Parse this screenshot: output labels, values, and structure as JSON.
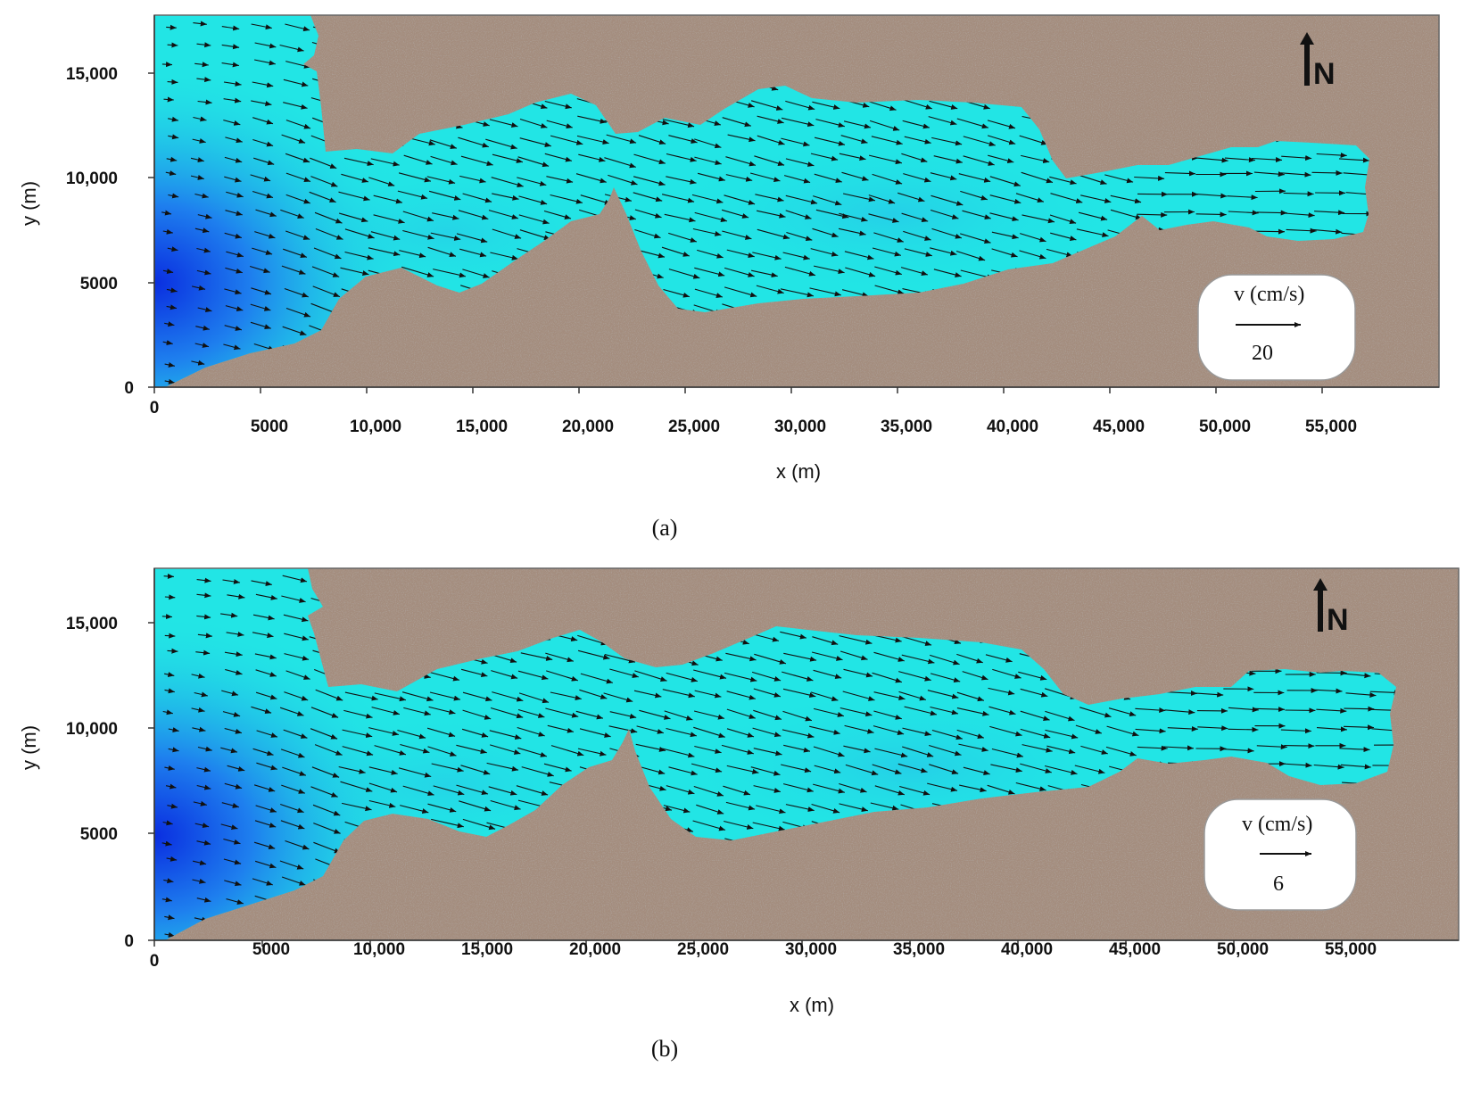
{
  "panels": [
    {
      "caption": "(a)",
      "x_label": "x (m)",
      "y_label": "y (m)",
      "x_ticks": [
        "0",
        "5000",
        "10,000",
        "15,000",
        "20,000",
        "25,000",
        "30,000",
        "35,000",
        "40,000",
        "45,000",
        "50,000",
        "55,000"
      ],
      "y_ticks": [
        "0",
        "5000",
        "10,000",
        "15,000"
      ],
      "north_label": "N",
      "legend": {
        "label": "v (cm/s)",
        "value": "20"
      }
    },
    {
      "caption": "(b)",
      "x_label": "x (m)",
      "y_label": "y (m)",
      "x_ticks": [
        "0",
        "5000",
        "10,000",
        "15,000",
        "20,000",
        "25,000",
        "30,000",
        "35,000",
        "40,000",
        "45,000",
        "50,000",
        "55,000"
      ],
      "y_ticks": [
        "0",
        "5000",
        "10,000",
        "15,000"
      ],
      "north_label": "N",
      "legend": {
        "label": "v (cm/s)",
        "value": "6"
      }
    }
  ],
  "colors": {
    "land": "#a48d7e",
    "water": "#22e5e5",
    "deep_water": "#0a2ee0",
    "arrow": "#111111"
  }
}
